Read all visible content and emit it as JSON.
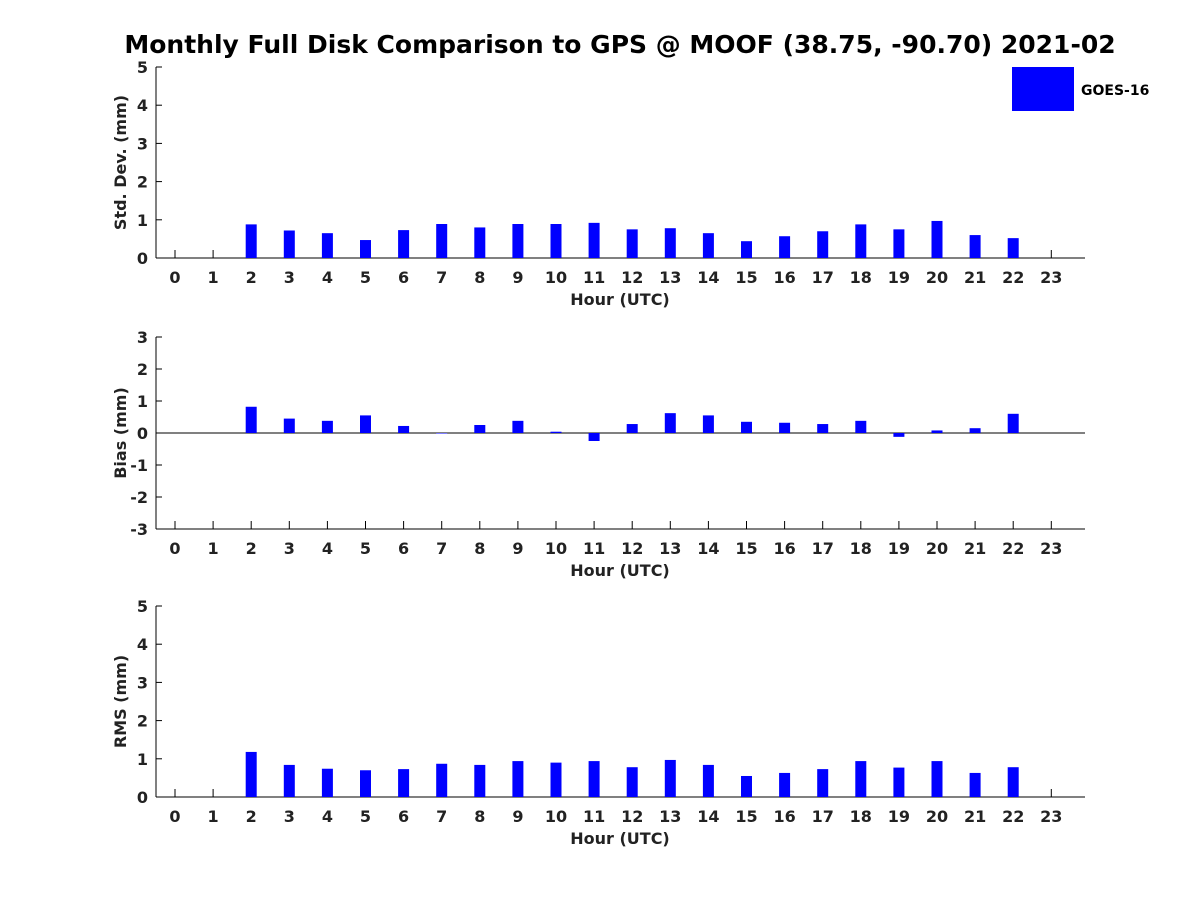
{
  "figure": {
    "title": "Monthly Full Disk Comparison to GPS @ MOOF (38.75, -90.70) 2021-02"
  },
  "legend": {
    "label": "GOES-16",
    "color": "#0000ff",
    "placement": "top-right"
  },
  "chart_data": [
    {
      "type": "bar",
      "xlabel": "Hour (UTC)",
      "ylabel": "Std. Dev. (mm)",
      "ylim": [
        0,
        5
      ],
      "yticks": [
        0,
        1,
        2,
        3,
        4,
        5
      ],
      "categories": [
        "0",
        "1",
        "2",
        "3",
        "4",
        "5",
        "6",
        "7",
        "8",
        "9",
        "10",
        "11",
        "12",
        "13",
        "14",
        "15",
        "16",
        "17",
        "18",
        "19",
        "20",
        "21",
        "22",
        "23"
      ],
      "series": [
        {
          "name": "GOES-16",
          "color": "#0000ff",
          "values": [
            null,
            null,
            0.88,
            0.72,
            0.65,
            0.47,
            0.73,
            0.89,
            0.8,
            0.89,
            0.89,
            0.92,
            0.75,
            0.78,
            0.65,
            0.44,
            0.57,
            0.7,
            0.88,
            0.75,
            0.97,
            0.6,
            0.52,
            null
          ]
        }
      ]
    },
    {
      "type": "bar",
      "xlabel": "Hour (UTC)",
      "ylabel": "Bias (mm)",
      "ylim": [
        -3,
        3
      ],
      "yticks": [
        -3,
        -2,
        -1,
        0,
        1,
        2,
        3
      ],
      "categories": [
        "0",
        "1",
        "2",
        "3",
        "4",
        "5",
        "6",
        "7",
        "8",
        "9",
        "10",
        "11",
        "12",
        "13",
        "14",
        "15",
        "16",
        "17",
        "18",
        "19",
        "20",
        "21",
        "22",
        "23"
      ],
      "series": [
        {
          "name": "GOES-16",
          "color": "#0000ff",
          "values": [
            null,
            null,
            0.82,
            0.45,
            0.38,
            0.55,
            0.22,
            0.0,
            0.25,
            0.38,
            0.04,
            -0.25,
            0.28,
            0.62,
            0.55,
            0.35,
            0.32,
            0.28,
            0.38,
            -0.12,
            0.08,
            0.15,
            0.6,
            null
          ]
        }
      ]
    },
    {
      "type": "bar",
      "xlabel": "Hour (UTC)",
      "ylabel": "RMS (mm)",
      "ylim": [
        0,
        5
      ],
      "yticks": [
        0,
        1,
        2,
        3,
        4,
        5
      ],
      "categories": [
        "0",
        "1",
        "2",
        "3",
        "4",
        "5",
        "6",
        "7",
        "8",
        "9",
        "10",
        "11",
        "12",
        "13",
        "14",
        "15",
        "16",
        "17",
        "18",
        "19",
        "20",
        "21",
        "22",
        "23"
      ],
      "series": [
        {
          "name": "GOES-16",
          "color": "#0000ff",
          "values": [
            null,
            null,
            1.18,
            0.84,
            0.74,
            0.7,
            0.73,
            0.87,
            0.84,
            0.94,
            0.9,
            0.94,
            0.78,
            0.97,
            0.84,
            0.55,
            0.63,
            0.73,
            0.94,
            0.77,
            0.94,
            0.63,
            0.78,
            null
          ]
        }
      ]
    }
  ]
}
